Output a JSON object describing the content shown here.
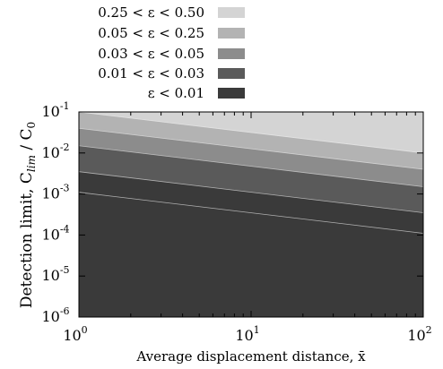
{
  "chart_data": {
    "type": "area",
    "title": "",
    "xlabel": "Average displacement distance, x̄",
    "ylabel_parts": {
      "main": "Detection limit, C",
      "sub1": "lim",
      "mid": " / C",
      "sub2": "0"
    },
    "x_scale": "log",
    "y_scale": "log",
    "xlim": [
      1,
      100
    ],
    "ylim": [
      1e-06,
      0.1
    ],
    "x_ticks": [
      {
        "value": 1,
        "base": "10",
        "exp": "0"
      },
      {
        "value": 10,
        "base": "10",
        "exp": "1"
      },
      {
        "value": 100,
        "base": "10",
        "exp": "2"
      }
    ],
    "y_ticks": [
      {
        "value": 1e-06,
        "base": "10",
        "exp": "-6"
      },
      {
        "value": 1e-05,
        "base": "10",
        "exp": "-5"
      },
      {
        "value": 0.0001,
        "base": "10",
        "exp": "-4"
      },
      {
        "value": 0.001,
        "base": "10",
        "exp": "-3"
      },
      {
        "value": 0.01,
        "base": "10",
        "exp": "-2"
      },
      {
        "value": 0.1,
        "base": "10",
        "exp": "-1"
      }
    ],
    "legend_position": "top-center, outside plot",
    "series": [
      {
        "name": "0.25 < ε < 0.50",
        "color": "#d4d4d4",
        "x": [
          1,
          100
        ],
        "upper": [
          0.1,
          0.1
        ],
        "lower": [
          0.1,
          0.01
        ]
      },
      {
        "name": "0.05 < ε < 0.25",
        "color": "#b3b3b3",
        "x": [
          1,
          100
        ],
        "upper": [
          0.1,
          0.01
        ],
        "lower": [
          0.04,
          0.004
        ]
      },
      {
        "name": "0.03 < ε < 0.05",
        "color": "#8c8c8c",
        "x": [
          1,
          100
        ],
        "upper": [
          0.04,
          0.004
        ],
        "lower": [
          0.015,
          0.0015
        ]
      },
      {
        "name": "0.01 < ε < 0.03",
        "color": "#5a5a5a",
        "x": [
          1,
          100
        ],
        "upper": [
          0.015,
          0.0015
        ],
        "lower": [
          0.0035,
          0.00035
        ]
      },
      {
        "name": "ε < 0.01",
        "color": "#3a3a3a",
        "x": [
          1,
          100
        ],
        "upper": [
          0.0035,
          0.00035
        ],
        "lower": [
          1e-06,
          1e-06
        ]
      }
    ],
    "boundaries": [
      {
        "x": [
          1,
          100
        ],
        "y": [
          0.1,
          0.01
        ]
      },
      {
        "x": [
          1,
          100
        ],
        "y": [
          0.04,
          0.004
        ]
      },
      {
        "x": [
          1,
          100
        ],
        "y": [
          0.015,
          0.0015
        ]
      },
      {
        "x": [
          1,
          100
        ],
        "y": [
          0.0035,
          0.00035
        ]
      },
      {
        "x": [
          1,
          100
        ],
        "y": [
          0.0011,
          0.00011
        ]
      }
    ]
  }
}
